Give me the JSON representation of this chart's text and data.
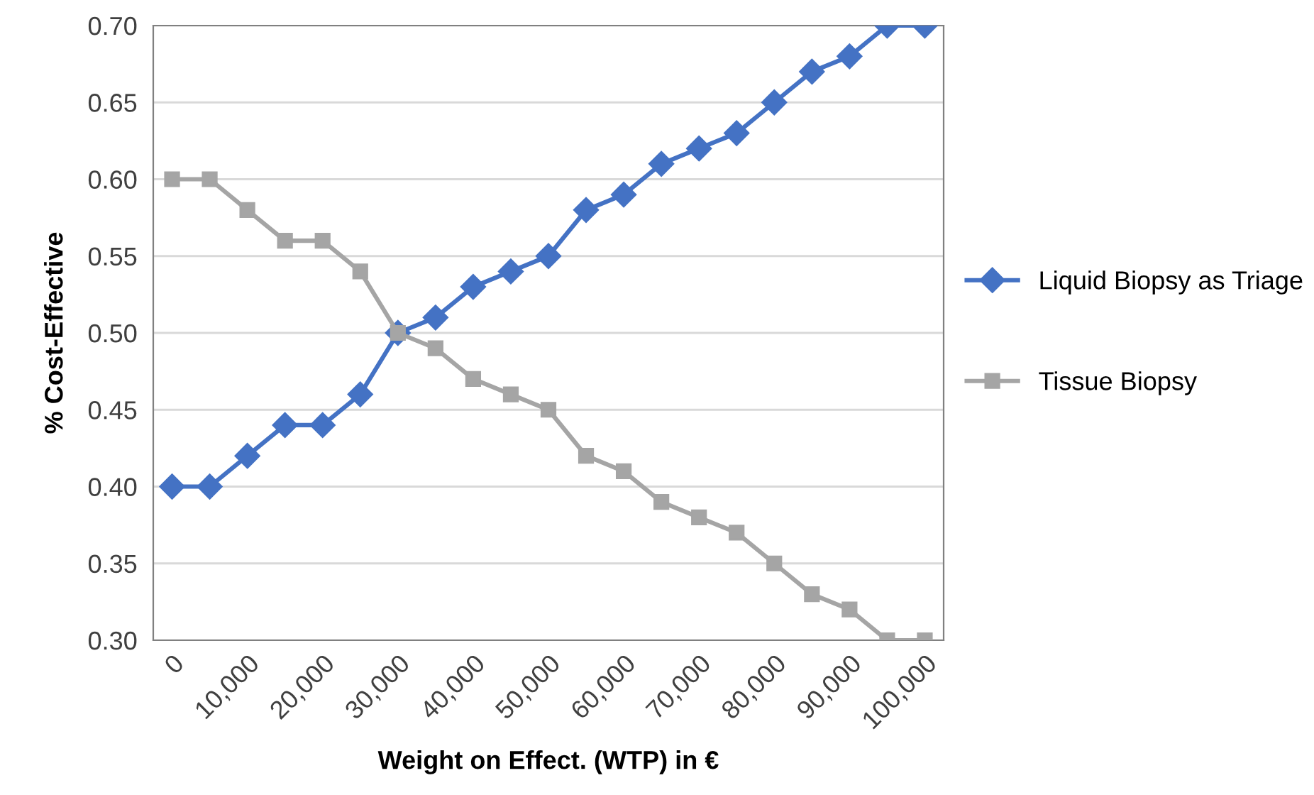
{
  "chart_data": {
    "type": "line",
    "xlabel": "Weight on Effect. (WTP) in €",
    "ylabel": "% Cost-Effective",
    "categories": [
      "0",
      null,
      "10,000",
      null,
      "20,000",
      null,
      "30,000",
      null,
      "40,000",
      null,
      "50,000",
      null,
      "60,000",
      null,
      "70,000",
      null,
      "80,000",
      null,
      "90,000",
      null,
      "100,000"
    ],
    "series": [
      {
        "name": "Liquid Biopsy as Triage",
        "color": "#4472c4",
        "marker": "diamond",
        "values": [
          0.4,
          0.4,
          0.42,
          0.44,
          0.44,
          0.46,
          0.5,
          0.51,
          0.53,
          0.54,
          0.55,
          0.58,
          0.59,
          0.61,
          0.62,
          0.63,
          0.65,
          0.67,
          0.68,
          0.7,
          0.7
        ]
      },
      {
        "name": "Tissue Biopsy",
        "color": "#a5a5a5",
        "marker": "square",
        "values": [
          0.6,
          0.6,
          0.58,
          0.56,
          0.56,
          0.54,
          0.5,
          0.49,
          0.47,
          0.46,
          0.45,
          0.42,
          0.41,
          0.39,
          0.38,
          0.37,
          0.35,
          0.33,
          0.32,
          0.3,
          0.3
        ]
      }
    ],
    "ylim": [
      0.3,
      0.7
    ],
    "yticks": [
      {
        "value": 0.3,
        "label": "0.30"
      },
      {
        "value": 0.35,
        "label": "0.35"
      },
      {
        "value": 0.4,
        "label": "0.40"
      },
      {
        "value": 0.45,
        "label": "0.45"
      },
      {
        "value": 0.5,
        "label": "0.50"
      },
      {
        "value": 0.55,
        "label": "0.55"
      },
      {
        "value": 0.6,
        "label": "0.60"
      },
      {
        "value": 0.65,
        "label": "0.65"
      },
      {
        "value": 0.7,
        "label": "0.70"
      }
    ],
    "grid": "y",
    "legend": "right",
    "line_style": "solid"
  }
}
